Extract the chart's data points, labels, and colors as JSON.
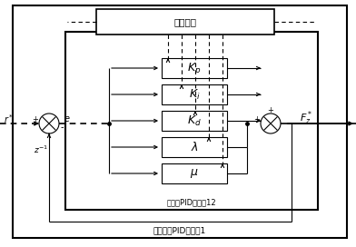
{
  "title_ant": "蚁群算法",
  "title_frac_pid": "分数阶PID控制器12",
  "title_ant_pid": "蚁群算法PID控制器1",
  "label_kp": "$K_p$",
  "label_ki": "$K_i$",
  "label_kd": "$K_d$",
  "label_lambda": "$\\lambda$",
  "label_mu": "$\\mu$",
  "label_e": "$e$",
  "label_r": "$z^{-1}$",
  "label_in": "$r^*$",
  "label_out": "$F_z^*$",
  "bg_color": "#ffffff",
  "box_color": "#000000"
}
